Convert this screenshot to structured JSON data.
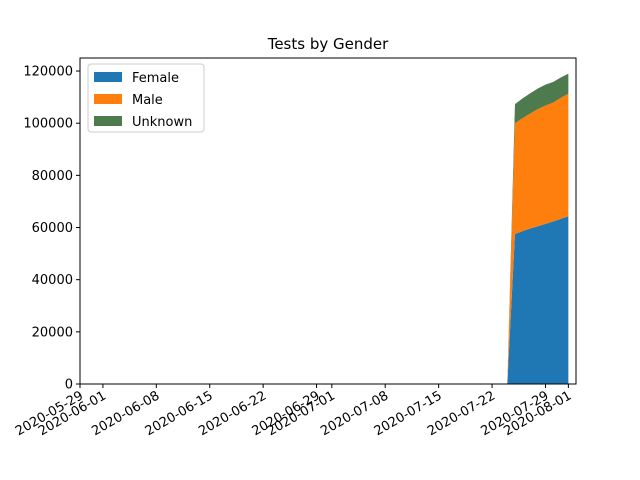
{
  "chart_data": {
    "type": "area",
    "stacked": true,
    "title": "Tests by Gender",
    "xlabel": "",
    "ylabel": "",
    "x_type": "date",
    "xlim": [
      "2020-05-29",
      "2020-08-02"
    ],
    "ylim": [
      0,
      125000
    ],
    "x_ticks": [
      "2020-05-29",
      "2020-06-01",
      "2020-06-08",
      "2020-06-15",
      "2020-06-22",
      "2020-06-29",
      "2020-07-01",
      "2020-07-08",
      "2020-07-15",
      "2020-07-22",
      "2020-07-29",
      "2020-08-01"
    ],
    "y_ticks": [
      0,
      20000,
      40000,
      60000,
      80000,
      100000,
      120000
    ],
    "grid": false,
    "legend_position": "top-left",
    "x": [
      "2020-07-24",
      "2020-07-25",
      "2020-07-26",
      "2020-07-27",
      "2020-07-28",
      "2020-07-29",
      "2020-07-30",
      "2020-07-31",
      "2020-08-01"
    ],
    "series": [
      {
        "name": "Female",
        "color": "#1f77b4",
        "values": [
          0,
          57500,
          58600,
          59600,
          60500,
          61400,
          62300,
          63300,
          64300
        ]
      },
      {
        "name": "Male",
        "color": "#ff7f0e",
        "values": [
          0,
          42500,
          43300,
          44100,
          44900,
          45400,
          45600,
          46400,
          47000
        ]
      },
      {
        "name": "Unknown",
        "color": "#4e7b4e",
        "values": [
          0,
          7300,
          7600,
          7800,
          7900,
          8000,
          7900,
          7800,
          7700
        ]
      }
    ]
  }
}
